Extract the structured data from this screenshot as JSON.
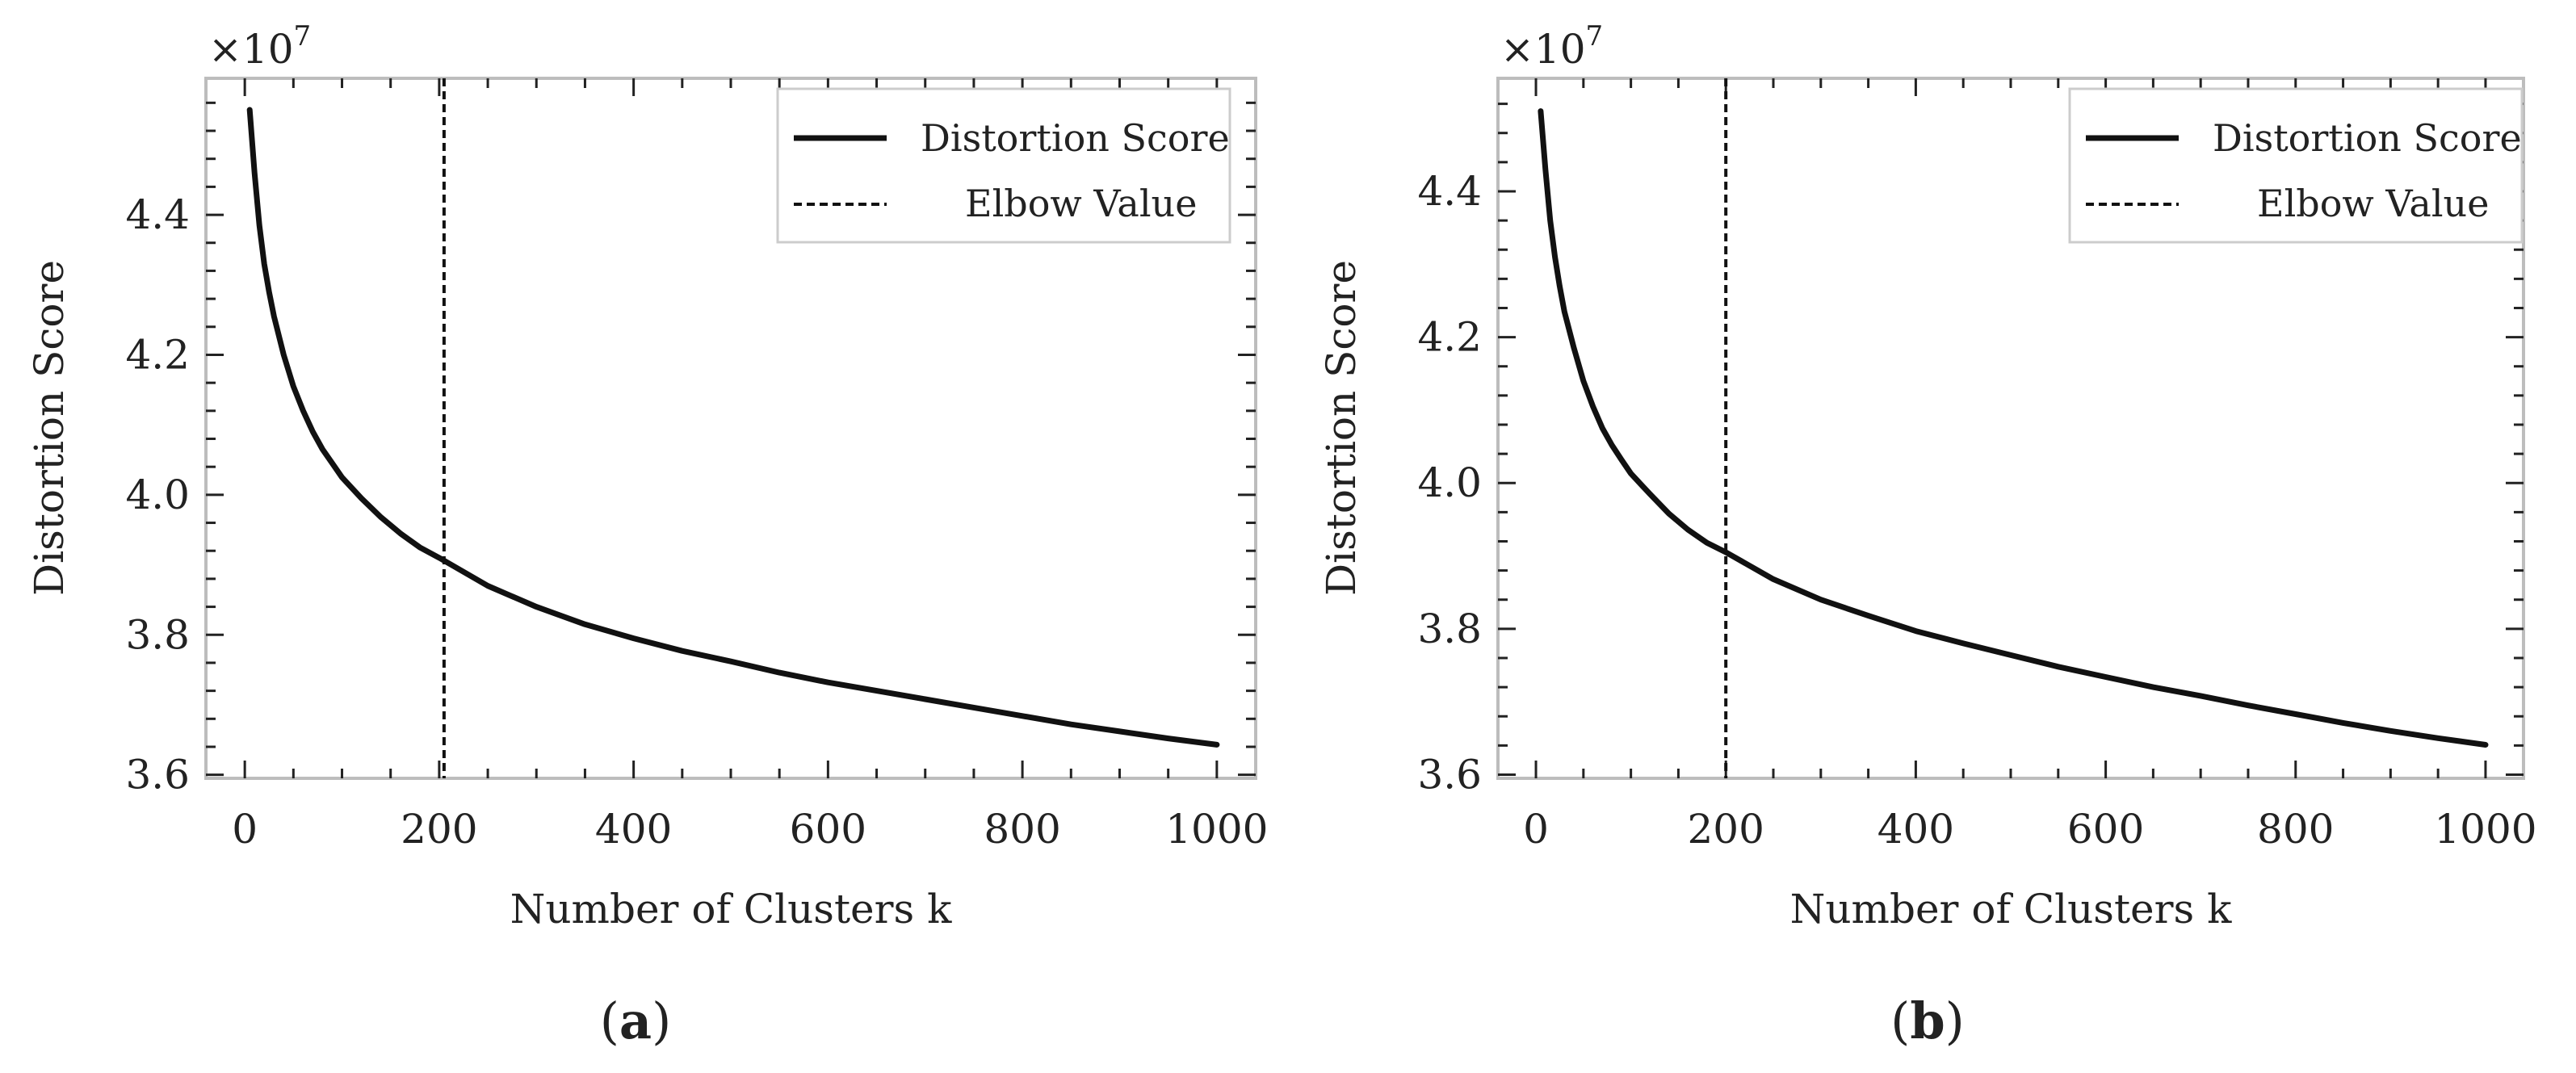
{
  "chart_data": [
    {
      "type": "line",
      "caption_letter": "a",
      "xlabel": "Number of Clusters k",
      "ylabel": "Distortion Score",
      "offset_text": "×10",
      "offset_exponent": "7",
      "xlim": [
        -40,
        1040
      ],
      "ylim": [
        3.595,
        4.595
      ],
      "x_ticks": [
        0,
        200,
        400,
        600,
        800,
        1000
      ],
      "x_tick_labels": [
        "0",
        "200",
        "400",
        "600",
        "800",
        "1000"
      ],
      "y_ticks": [
        3.6,
        3.8,
        4.0,
        4.2,
        4.4
      ],
      "y_tick_labels": [
        "3.6",
        "3.8",
        "4.0",
        "4.2",
        "4.4"
      ],
      "series": [
        {
          "name": "Distortion Score",
          "style": "solid",
          "x": [
            5,
            10,
            15,
            20,
            25,
            30,
            40,
            50,
            60,
            70,
            80,
            90,
            100,
            120,
            140,
            160,
            180,
            200,
            250,
            300,
            350,
            400,
            450,
            500,
            550,
            600,
            650,
            700,
            750,
            800,
            850,
            900,
            950,
            1000
          ],
          "y": [
            4.55,
            4.46,
            4.385,
            4.33,
            4.29,
            4.255,
            4.2,
            4.155,
            4.12,
            4.09,
            4.065,
            4.045,
            4.025,
            3.995,
            3.968,
            3.945,
            3.925,
            3.91,
            3.87,
            3.84,
            3.815,
            3.795,
            3.777,
            3.762,
            3.746,
            3.732,
            3.72,
            3.708,
            3.696,
            3.684,
            3.672,
            3.662,
            3.652,
            3.643
          ]
        },
        {
          "name": "Elbow Value",
          "style": "dashed",
          "x_value": 205
        }
      ],
      "legend": {
        "position": "top-right",
        "entries": [
          "Distortion Score",
          "Elbow Value"
        ]
      }
    },
    {
      "type": "line",
      "caption_letter": "b",
      "xlabel": "Number of Clusters k",
      "ylabel": "Distortion Score",
      "offset_text": "×10",
      "offset_exponent": "7",
      "xlim": [
        -40,
        1040
      ],
      "ylim": [
        3.595,
        4.555
      ],
      "x_ticks": [
        0,
        200,
        400,
        600,
        800,
        1000
      ],
      "x_tick_labels": [
        "0",
        "200",
        "400",
        "600",
        "800",
        "1000"
      ],
      "y_ticks": [
        3.6,
        3.8,
        4.0,
        4.2,
        4.4
      ],
      "y_tick_labels": [
        "3.6",
        "3.8",
        "4.0",
        "4.2",
        "4.4"
      ],
      "series": [
        {
          "name": "Distortion Score",
          "style": "solid",
          "x": [
            5,
            10,
            15,
            20,
            25,
            30,
            40,
            50,
            60,
            70,
            80,
            90,
            100,
            120,
            140,
            160,
            180,
            200,
            250,
            300,
            350,
            400,
            450,
            500,
            550,
            600,
            650,
            700,
            750,
            800,
            850,
            900,
            950,
            1000
          ],
          "y": [
            4.51,
            4.43,
            4.36,
            4.31,
            4.27,
            4.235,
            4.185,
            4.14,
            4.105,
            4.075,
            4.052,
            4.032,
            4.013,
            3.985,
            3.958,
            3.936,
            3.918,
            3.905,
            3.868,
            3.84,
            3.818,
            3.797,
            3.78,
            3.764,
            3.748,
            3.734,
            3.72,
            3.708,
            3.695,
            3.683,
            3.671,
            3.66,
            3.65,
            3.641
          ]
        },
        {
          "name": "Elbow Value",
          "style": "dashed",
          "x_value": 200
        }
      ],
      "legend": {
        "position": "top-right",
        "entries": [
          "Distortion Score",
          "Elbow Value"
        ]
      }
    }
  ]
}
